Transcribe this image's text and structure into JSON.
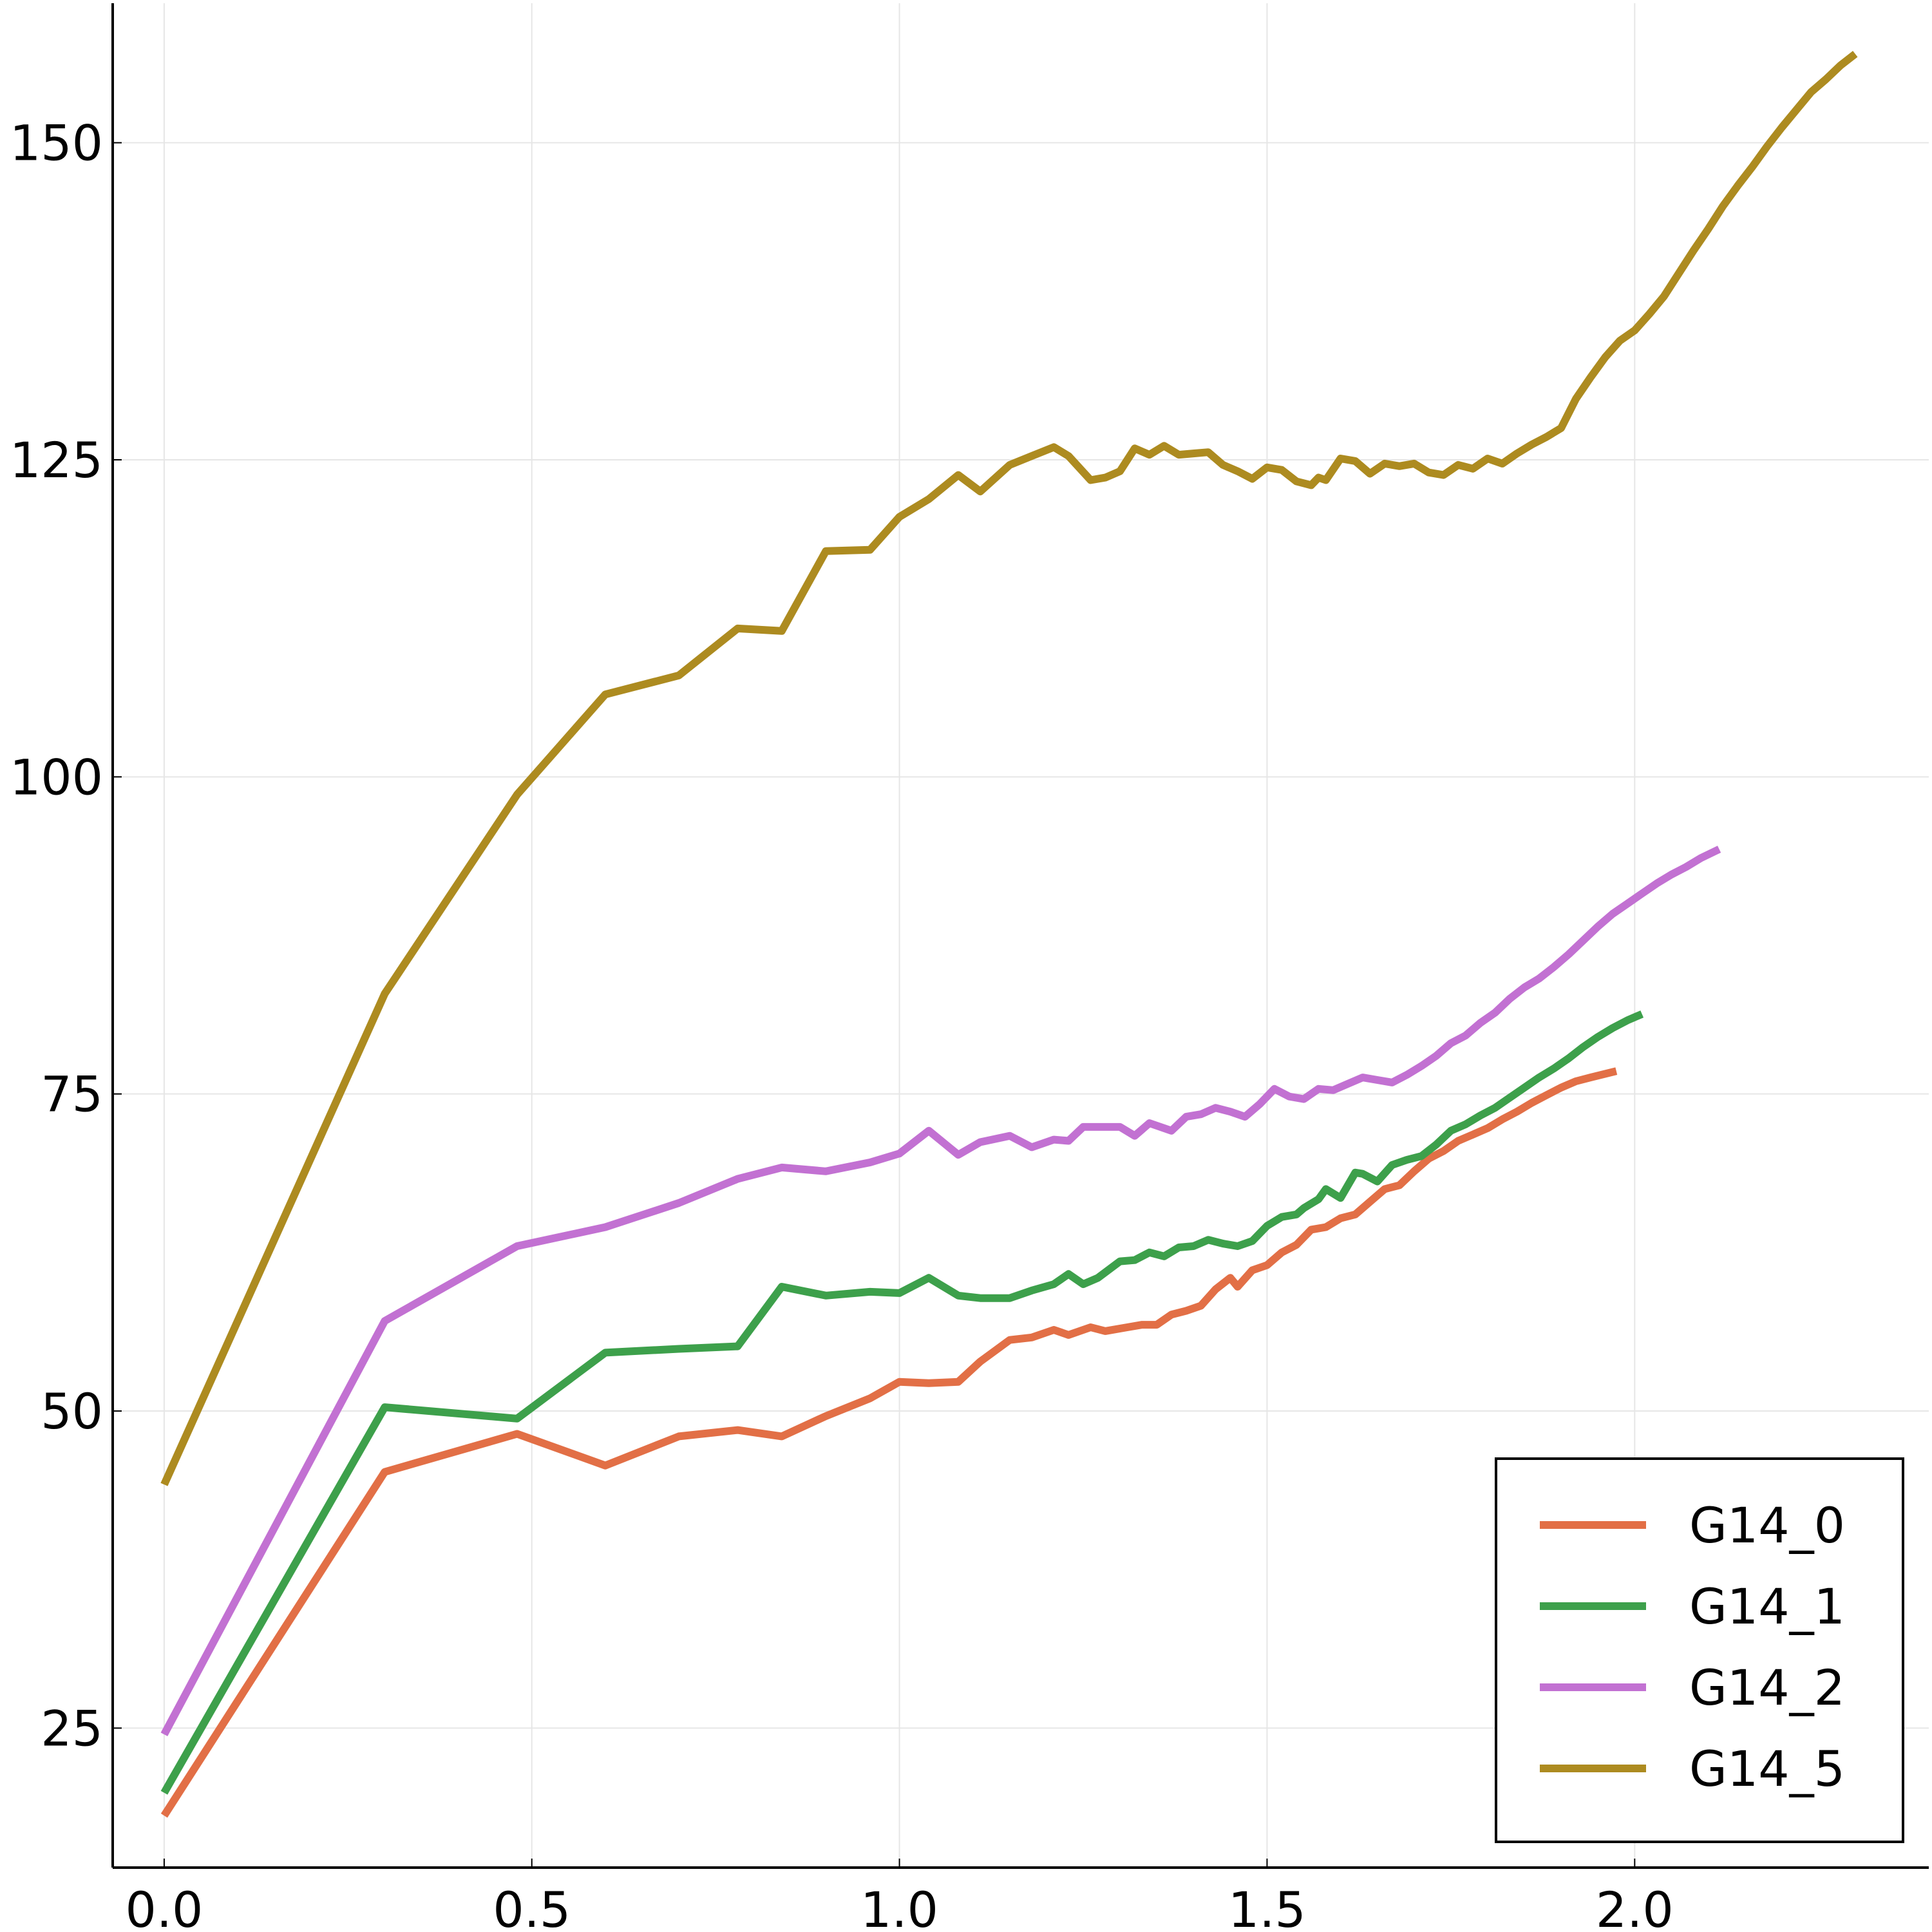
{
  "chart_data": {
    "type": "line",
    "title": "",
    "xlabel": "",
    "ylabel": "",
    "xlim": [
      -0.07,
      2.4
    ],
    "ylim": [
      14,
      161
    ],
    "grid": true,
    "legend_position": "bottom-right",
    "x_ticks": [
      {
        "value": 0.0,
        "label": "0.0"
      },
      {
        "value": 0.5,
        "label": "0.5"
      },
      {
        "value": 1.0,
        "label": "1.0"
      },
      {
        "value": 1.5,
        "label": "1.5"
      },
      {
        "value": 2.0,
        "label": "2.0"
      }
    ],
    "y_ticks": [
      {
        "value": 25,
        "label": "25"
      },
      {
        "value": 50,
        "label": "50"
      },
      {
        "value": 75,
        "label": "75"
      },
      {
        "value": 100,
        "label": "100"
      },
      {
        "value": 125,
        "label": "125"
      },
      {
        "value": 150,
        "label": "150"
      }
    ],
    "series": [
      {
        "name": "G14_0",
        "color": "#e26f46",
        "points": [
          [
            0,
            18.1
          ],
          [
            0.3,
            45.2
          ],
          [
            0.48,
            48.2
          ],
          [
            0.6,
            45.7
          ],
          [
            0.7,
            48
          ],
          [
            0.78,
            48.5
          ],
          [
            0.84,
            48
          ],
          [
            0.9,
            49.6
          ],
          [
            0.96,
            51
          ],
          [
            1.0,
            52.3
          ],
          [
            1.04,
            52.2
          ],
          [
            1.08,
            52.3
          ],
          [
            1.11,
            53.9
          ],
          [
            1.15,
            55.6
          ],
          [
            1.18,
            55.8
          ],
          [
            1.21,
            56.4
          ],
          [
            1.23,
            56
          ],
          [
            1.26,
            56.6
          ],
          [
            1.28,
            56.3
          ],
          [
            1.31,
            56.6
          ],
          [
            1.33,
            56.8
          ],
          [
            1.35,
            56.8
          ],
          [
            1.37,
            57.6
          ],
          [
            1.39,
            57.9
          ],
          [
            1.41,
            58.3
          ],
          [
            1.43,
            59.6
          ],
          [
            1.45,
            60.5
          ],
          [
            1.46,
            59.8
          ],
          [
            1.48,
            61.1
          ],
          [
            1.5,
            61.5
          ],
          [
            1.52,
            62.5
          ],
          [
            1.54,
            63.1
          ],
          [
            1.56,
            64.3
          ],
          [
            1.58,
            64.5
          ],
          [
            1.6,
            65.2
          ],
          [
            1.62,
            65.5
          ],
          [
            1.64,
            66.5
          ],
          [
            1.66,
            67.5
          ],
          [
            1.68,
            67.8
          ],
          [
            1.7,
            68.9
          ],
          [
            1.72,
            69.9
          ],
          [
            1.74,
            70.5
          ],
          [
            1.76,
            71.3
          ],
          [
            1.78,
            71.8
          ],
          [
            1.8,
            72.3
          ],
          [
            1.82,
            73
          ],
          [
            1.84,
            73.6
          ],
          [
            1.86,
            74.3
          ],
          [
            1.88,
            74.9
          ],
          [
            1.9,
            75.5
          ],
          [
            1.92,
            76
          ],
          [
            1.94,
            76.3
          ],
          [
            1.975,
            76.8
          ]
        ]
      },
      {
        "name": "G14_1",
        "color": "#3da04b",
        "points": [
          [
            0,
            19.9
          ],
          [
            0.3,
            50.3
          ],
          [
            0.48,
            49.4
          ],
          [
            0.6,
            54.6
          ],
          [
            0.7,
            54.9
          ],
          [
            0.78,
            55.1
          ],
          [
            0.84,
            59.8
          ],
          [
            0.9,
            59.1
          ],
          [
            0.96,
            59.4
          ],
          [
            1.0,
            59.3
          ],
          [
            1.04,
            60.5
          ],
          [
            1.08,
            59.1
          ],
          [
            1.11,
            58.9
          ],
          [
            1.15,
            58.9
          ],
          [
            1.18,
            59.5
          ],
          [
            1.21,
            60
          ],
          [
            1.23,
            60.8
          ],
          [
            1.25,
            60
          ],
          [
            1.27,
            60.5
          ],
          [
            1.3,
            61.8
          ],
          [
            1.32,
            61.9
          ],
          [
            1.34,
            62.5
          ],
          [
            1.36,
            62.2
          ],
          [
            1.38,
            62.9
          ],
          [
            1.4,
            63
          ],
          [
            1.42,
            63.5
          ],
          [
            1.44,
            63.2
          ],
          [
            1.46,
            63
          ],
          [
            1.48,
            63.4
          ],
          [
            1.5,
            64.6
          ],
          [
            1.52,
            65.3
          ],
          [
            1.54,
            65.5
          ],
          [
            1.55,
            66
          ],
          [
            1.57,
            66.7
          ],
          [
            1.58,
            67.5
          ],
          [
            1.6,
            66.8
          ],
          [
            1.62,
            68.8
          ],
          [
            1.63,
            68.7
          ],
          [
            1.65,
            68.1
          ],
          [
            1.67,
            69.4
          ],
          [
            1.69,
            69.8
          ],
          [
            1.71,
            70.1
          ],
          [
            1.73,
            71
          ],
          [
            1.75,
            72.1
          ],
          [
            1.77,
            72.6
          ],
          [
            1.79,
            73.3
          ],
          [
            1.81,
            73.9
          ],
          [
            1.83,
            74.7
          ],
          [
            1.85,
            75.5
          ],
          [
            1.87,
            76.3
          ],
          [
            1.89,
            77
          ],
          [
            1.91,
            77.8
          ],
          [
            1.93,
            78.7
          ],
          [
            1.95,
            79.5
          ],
          [
            1.97,
            80.2
          ],
          [
            1.99,
            80.8
          ],
          [
            2.01,
            81.3
          ]
        ]
      },
      {
        "name": "G14_2",
        "color": "#c271d2",
        "points": [
          [
            0,
            24.5
          ],
          [
            0.3,
            57.1
          ],
          [
            0.48,
            63
          ],
          [
            0.6,
            64.5
          ],
          [
            0.7,
            66.4
          ],
          [
            0.78,
            68.3
          ],
          [
            0.84,
            69.2
          ],
          [
            0.9,
            68.9
          ],
          [
            0.96,
            69.6
          ],
          [
            1.0,
            70.3
          ],
          [
            1.04,
            72.1
          ],
          [
            1.08,
            70.2
          ],
          [
            1.11,
            71.2
          ],
          [
            1.15,
            71.7
          ],
          [
            1.18,
            70.8
          ],
          [
            1.21,
            71.4
          ],
          [
            1.23,
            71.3
          ],
          [
            1.25,
            72.4
          ],
          [
            1.28,
            72.4
          ],
          [
            1.3,
            72.4
          ],
          [
            1.32,
            71.7
          ],
          [
            1.34,
            72.7
          ],
          [
            1.37,
            72.1
          ],
          [
            1.39,
            73.2
          ],
          [
            1.41,
            73.4
          ],
          [
            1.43,
            73.9
          ],
          [
            1.45,
            73.6
          ],
          [
            1.47,
            73.2
          ],
          [
            1.49,
            74.2
          ],
          [
            1.51,
            75.4
          ],
          [
            1.53,
            74.8
          ],
          [
            1.55,
            74.6
          ],
          [
            1.57,
            75.4
          ],
          [
            1.59,
            75.3
          ],
          [
            1.61,
            75.8
          ],
          [
            1.63,
            76.3
          ],
          [
            1.65,
            76.1
          ],
          [
            1.67,
            75.9
          ],
          [
            1.69,
            76.5
          ],
          [
            1.71,
            77.2
          ],
          [
            1.73,
            78
          ],
          [
            1.75,
            79
          ],
          [
            1.77,
            79.6
          ],
          [
            1.79,
            80.6
          ],
          [
            1.81,
            81.4
          ],
          [
            1.83,
            82.5
          ],
          [
            1.85,
            83.4
          ],
          [
            1.87,
            84.1
          ],
          [
            1.89,
            85
          ],
          [
            1.91,
            86
          ],
          [
            1.93,
            87.1
          ],
          [
            1.95,
            88.2
          ],
          [
            1.97,
            89.2
          ],
          [
            1.99,
            90
          ],
          [
            2.01,
            90.8
          ],
          [
            2.03,
            91.6
          ],
          [
            2.05,
            92.3
          ],
          [
            2.07,
            92.9
          ],
          [
            2.09,
            93.6
          ],
          [
            2.115,
            94.3
          ]
        ]
      },
      {
        "name": "G14_5",
        "color": "#ad8b20",
        "points": [
          [
            0,
            44.2
          ],
          [
            0.3,
            82.9
          ],
          [
            0.48,
            98.6
          ],
          [
            0.6,
            106.5
          ],
          [
            0.7,
            108
          ],
          [
            0.78,
            111.7
          ],
          [
            0.84,
            111.5
          ],
          [
            0.9,
            117.8
          ],
          [
            0.96,
            117.9
          ],
          [
            1.0,
            120.5
          ],
          [
            1.04,
            121.9
          ],
          [
            1.08,
            123.8
          ],
          [
            1.11,
            122.5
          ],
          [
            1.15,
            124.6
          ],
          [
            1.18,
            125.3
          ],
          [
            1.21,
            126
          ],
          [
            1.23,
            125.3
          ],
          [
            1.26,
            123.4
          ],
          [
            1.28,
            123.6
          ],
          [
            1.3,
            124.1
          ],
          [
            1.32,
            125.9
          ],
          [
            1.34,
            125.4
          ],
          [
            1.36,
            126.1
          ],
          [
            1.38,
            125.4
          ],
          [
            1.4,
            125.5
          ],
          [
            1.42,
            125.6
          ],
          [
            1.44,
            124.6
          ],
          [
            1.46,
            124.1
          ],
          [
            1.48,
            123.5
          ],
          [
            1.5,
            124.4
          ],
          [
            1.52,
            124.2
          ],
          [
            1.54,
            123.3
          ],
          [
            1.56,
            123
          ],
          [
            1.57,
            123.6
          ],
          [
            1.58,
            123.4
          ],
          [
            1.6,
            125.1
          ],
          [
            1.62,
            124.9
          ],
          [
            1.64,
            123.9
          ],
          [
            1.66,
            124.7
          ],
          [
            1.68,
            124.5
          ],
          [
            1.7,
            124.7
          ],
          [
            1.72,
            124
          ],
          [
            1.74,
            123.8
          ],
          [
            1.76,
            124.6
          ],
          [
            1.78,
            124.3
          ],
          [
            1.8,
            125.1
          ],
          [
            1.82,
            124.7
          ],
          [
            1.84,
            125.5
          ],
          [
            1.86,
            126.2
          ],
          [
            1.88,
            126.8
          ],
          [
            1.9,
            127.5
          ],
          [
            1.92,
            129.8
          ],
          [
            1.94,
            131.5
          ],
          [
            1.96,
            133.1
          ],
          [
            1.98,
            134.4
          ],
          [
            2.0,
            135.2
          ],
          [
            2.02,
            136.5
          ],
          [
            2.04,
            137.9
          ],
          [
            2.06,
            139.7
          ],
          [
            2.08,
            141.5
          ],
          [
            2.1,
            143.2
          ],
          [
            2.12,
            145
          ],
          [
            2.14,
            146.6
          ],
          [
            2.16,
            148.1
          ],
          [
            2.18,
            149.7
          ],
          [
            2.2,
            151.2
          ],
          [
            2.22,
            152.6
          ],
          [
            2.24,
            154
          ],
          [
            2.26,
            155
          ],
          [
            2.28,
            156.1
          ],
          [
            2.3,
            157
          ]
        ]
      }
    ]
  }
}
